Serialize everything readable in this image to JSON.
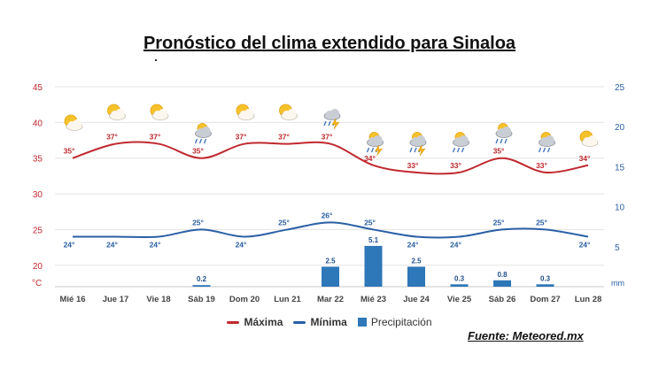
{
  "title": "Pronóstico del clima extendido para Sinaloa",
  "source": "Fuente: Meteored.mx",
  "legend": {
    "max_label": "Máxima",
    "min_label": "Mínima",
    "precip_label": "Precipitación"
  },
  "colors": {
    "max": "#c0292f",
    "min": "#2a5fa5",
    "precip": "#2e77b8",
    "left_axis": "#c0292f",
    "right_axis": "#2a5fa5"
  },
  "chart_data": {
    "type": "line",
    "categories": [
      "Mié 16",
      "Jue 17",
      "Vie 18",
      "Sáb 19",
      "Dom 20",
      "Lun 21",
      "Mar 22",
      "Mié 23",
      "Jue 24",
      "Vie 25",
      "Sáb 26",
      "Dom 27",
      "Lun 28"
    ],
    "series": [
      {
        "name": "Máxima",
        "axis": "left",
        "values": [
          35,
          37,
          37,
          35,
          37,
          37,
          37,
          34,
          33,
          33,
          35,
          33,
          34
        ],
        "labels": [
          "35°",
          "37°",
          "37°",
          "35°",
          "37°",
          "37°",
          "37°",
          "34°",
          "33°",
          "33°",
          "35°",
          "33°",
          "34°"
        ]
      },
      {
        "name": "Mínima",
        "axis": "left",
        "values": [
          24,
          24,
          24,
          25,
          24,
          25,
          26,
          25,
          24,
          24,
          25,
          25,
          24
        ],
        "labels": [
          "24°",
          "24°",
          "24°",
          "25°",
          "24°",
          "25°",
          "26°",
          "25°",
          "24°",
          "24°",
          "25°",
          "25°",
          "24°"
        ]
      },
      {
        "name": "Precipitación",
        "type": "bar",
        "axis": "right",
        "values": [
          0,
          0,
          0,
          0.2,
          0,
          0,
          2.5,
          5.1,
          2.5,
          0.3,
          0.8,
          0.3,
          0
        ],
        "labels": [
          "",
          "",
          "",
          "0.2",
          "",
          "",
          "2.5",
          "5.1",
          "2.5",
          "0.3",
          "0.8",
          "0.3",
          ""
        ]
      }
    ],
    "left_axis": {
      "ticks": [
        "45",
        "40",
        "35",
        "30",
        "25",
        "20"
      ],
      "unit": "°C",
      "ylim": [
        17,
        45
      ]
    },
    "right_axis": {
      "ticks": [
        "25",
        "20",
        "15",
        "10",
        "5"
      ],
      "unit": "mm",
      "ylim": [
        0,
        25
      ]
    },
    "weather_icons": [
      "sun-cloud-icon",
      "sun-cloud-icon",
      "sun-cloud-icon",
      "rain-cloud-icon",
      "sun-cloud-icon",
      "sun-cloud-icon",
      "storm-cloud-icon",
      "rain-storm-icon",
      "rain-storm-icon",
      "rain-cloud-icon",
      "rain-cloud-icon",
      "rain-cloud-icon",
      "sun-cloud-icon"
    ],
    "grid": true,
    "legend_position": "bottom"
  }
}
